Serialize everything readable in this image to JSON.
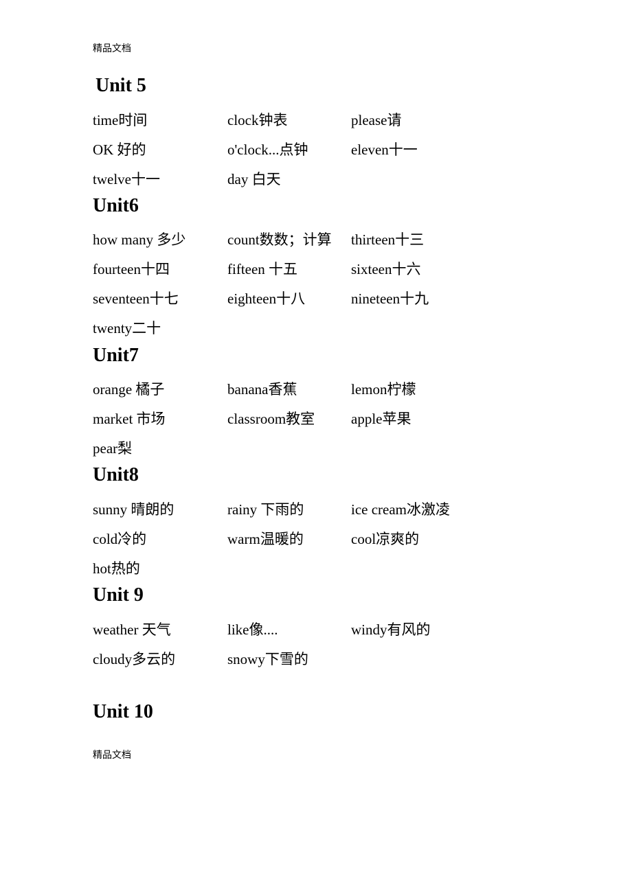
{
  "header_tag": "精品文档",
  "footer_tag": "精品文档",
  "units": {
    "u5": {
      "heading": "Unit 5",
      "rows": [
        [
          "time时间",
          "clock钟表",
          "please请"
        ],
        [
          "OK 好的",
          "o'clock...点钟",
          "eleven十一"
        ],
        [
          "twelve十一",
          "day 白天",
          ""
        ]
      ]
    },
    "u6": {
      "heading": "Unit6",
      "rows": [
        [
          "how  many 多少",
          "count数数；计算",
          "thirteen十三"
        ],
        [
          "fourteen十四",
          "fifteen  十五",
          "sixteen十六"
        ],
        [
          "seventeen十七",
          "eighteen十八",
          "nineteen十九"
        ],
        [
          "twenty二十",
          "",
          ""
        ]
      ]
    },
    "u7": {
      "heading": "Unit7",
      "rows": [
        [
          "orange  橘子",
          "banana香蕉",
          "lemon柠檬"
        ],
        [
          "market 市场",
          "classroom教室",
          "apple苹果"
        ],
        [
          "pear梨",
          "",
          ""
        ]
      ]
    },
    "u8": {
      "heading": "Unit8",
      "rows": [
        [
          "sunny 晴朗的",
          "rainy 下雨的",
          "ice cream冰激凌"
        ],
        [
          "cold冷的",
          "warm温暖的",
          "cool凉爽的"
        ],
        [
          "hot热的",
          "",
          ""
        ]
      ]
    },
    "u9": {
      "heading": "Unit 9",
      "rows": [
        [
          "weather 天气",
          "like像....",
          "windy有风的"
        ],
        [
          "cloudy多云的",
          "snowy下雪的",
          ""
        ]
      ]
    },
    "u10": {
      "heading": "Unit 10"
    }
  }
}
